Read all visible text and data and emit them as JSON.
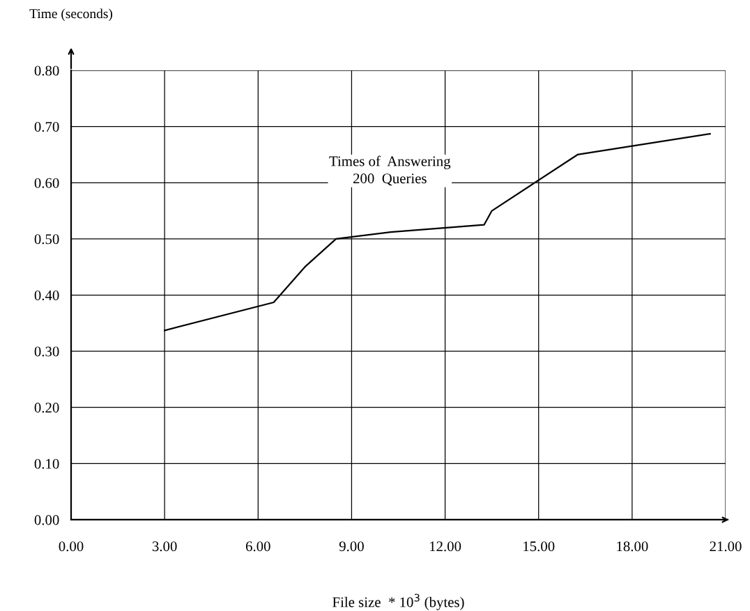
{
  "chart_data": {
    "type": "line",
    "ylabel": "Time (seconds)",
    "xlabel": "File size  * 10$^{3}$ (bytes)",
    "annotations": [
      "Times of  Answering\n200  Queries"
    ],
    "x": [
      3.0,
      6.5,
      7.5,
      8.5,
      10.25,
      13.25,
      13.5,
      16.25,
      20.5
    ],
    "series": [
      {
        "color": "#000000",
        "values": [
          0.337,
          0.387,
          0.45,
          0.5,
          0.512,
          0.525,
          0.55,
          0.65,
          0.687
        ]
      }
    ],
    "xlim": [
      0,
      21
    ],
    "ylim": [
      0,
      0.8
    ],
    "xticks": [
      {
        "value": 0,
        "label": "0.00"
      },
      {
        "value": 3,
        "label": "3.00"
      },
      {
        "value": 6,
        "label": "6.00"
      },
      {
        "value": 9,
        "label": "9.00"
      },
      {
        "value": 12,
        "label": "12.00"
      },
      {
        "value": 15,
        "label": "15.00"
      },
      {
        "value": 18,
        "label": "18.00"
      },
      {
        "value": 21,
        "label": "21.00"
      }
    ],
    "yticks": [
      {
        "value": 0,
        "label": "0.00"
      },
      {
        "value": 0.1,
        "label": "0.10"
      },
      {
        "value": 0.2,
        "label": "0.20"
      },
      {
        "value": 0.3,
        "label": "0.30"
      },
      {
        "value": 0.4,
        "label": "0.40"
      },
      {
        "value": 0.5,
        "label": "0.50"
      },
      {
        "value": 0.6,
        "label": "0.60"
      },
      {
        "value": 0.7,
        "label": "0.70"
      },
      {
        "value": 0.8,
        "label": "0.80"
      }
    ],
    "grid": true,
    "marker": "none",
    "line_style": "solid"
  }
}
